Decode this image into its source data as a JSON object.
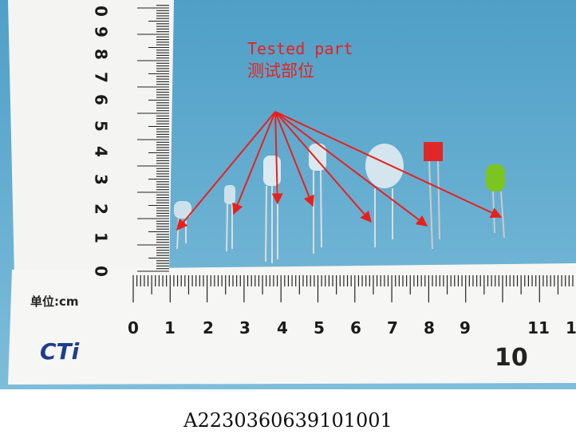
{
  "annotation": {
    "line1": "Tested part",
    "line2": "测试部位"
  },
  "ruler": {
    "vertical_labels": [
      "0",
      "9",
      "8",
      "7",
      "6",
      "5",
      "4",
      "3",
      "2",
      "1",
      "0"
    ],
    "horizontal_labels": [
      "0",
      "1",
      "2",
      "3",
      "4",
      "5",
      "6",
      "7",
      "8",
      "9",
      "11",
      "1"
    ],
    "big_label": "10",
    "unit": "单位:cm",
    "brand": "CTi"
  },
  "caption": "A2230360639101001"
}
